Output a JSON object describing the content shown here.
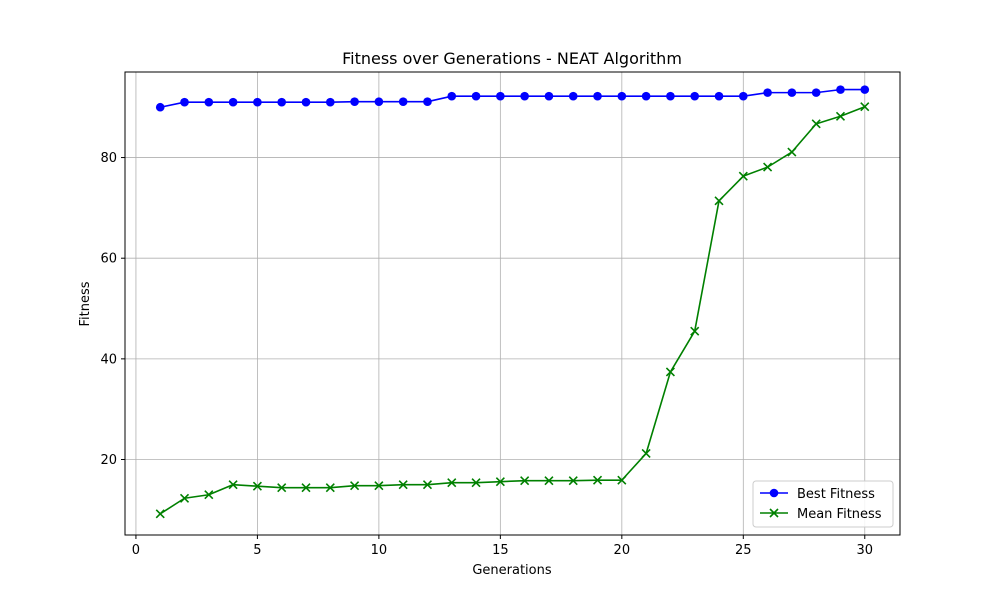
{
  "chart_data": {
    "type": "line",
    "title": "Fitness over Generations - NEAT Algorithm",
    "xlabel": "Generations",
    "ylabel": "Fitness",
    "xlim": [
      -0.45,
      31.45
    ],
    "ylim": [
      5.0,
      97.0
    ],
    "xticks": [
      0,
      5,
      10,
      15,
      20,
      25,
      30
    ],
    "yticks": [
      20,
      40,
      60,
      80
    ],
    "grid": true,
    "legend_position": "lower-right",
    "x": [
      1,
      2,
      3,
      4,
      5,
      6,
      7,
      8,
      9,
      10,
      11,
      12,
      13,
      14,
      15,
      16,
      17,
      18,
      19,
      20,
      21,
      22,
      23,
      24,
      25,
      26,
      27,
      28,
      29,
      30
    ],
    "series": [
      {
        "name": "Best Fitness",
        "color": "#0000ff",
        "marker": "circle",
        "values": [
          90.0,
          91.0,
          91.0,
          91.0,
          91.0,
          91.0,
          91.0,
          91.0,
          91.1,
          91.1,
          91.1,
          91.1,
          92.2,
          92.2,
          92.2,
          92.2,
          92.2,
          92.2,
          92.2,
          92.2,
          92.2,
          92.2,
          92.2,
          92.2,
          92.2,
          92.9,
          92.9,
          92.9,
          93.5,
          93.5
        ]
      },
      {
        "name": "Mean Fitness",
        "color": "#008000",
        "marker": "x",
        "values": [
          9.2,
          12.3,
          13.0,
          15.0,
          14.7,
          14.4,
          14.4,
          14.4,
          14.8,
          14.8,
          15.0,
          15.0,
          15.4,
          15.4,
          15.6,
          15.8,
          15.8,
          15.8,
          15.9,
          15.9,
          21.2,
          37.4,
          45.5,
          71.4,
          76.3,
          78.1,
          81.1,
          86.7,
          88.2,
          90.1
        ]
      }
    ]
  }
}
